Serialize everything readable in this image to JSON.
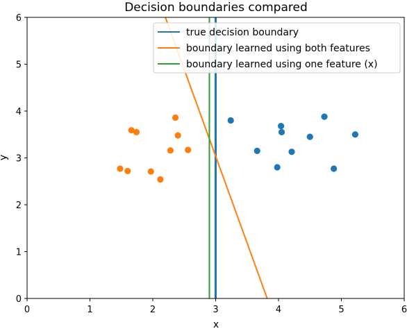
{
  "chart_data": {
    "type": "scatter",
    "title": "Decision boundaries compared",
    "xlabel": "x",
    "ylabel": "y",
    "xlim": [
      0,
      6
    ],
    "ylim": [
      0,
      6
    ],
    "xticks": [
      "0",
      "1",
      "2",
      "3",
      "4",
      "5",
      "6"
    ],
    "yticks": [
      "0",
      "1",
      "2",
      "3",
      "4",
      "5",
      "6"
    ],
    "grid": false,
    "legend_position": "top-right",
    "point_series": [
      {
        "color": "#ff7f0e",
        "points": [
          [
            1.48,
            2.77
          ],
          [
            1.6,
            2.72
          ],
          [
            1.66,
            3.59
          ],
          [
            1.74,
            3.55
          ],
          [
            1.97,
            2.71
          ],
          [
            2.12,
            2.54
          ],
          [
            2.28,
            3.16
          ],
          [
            2.36,
            3.86
          ],
          [
            2.4,
            3.48
          ],
          [
            2.56,
            3.17
          ]
        ]
      },
      {
        "color": "#1f77b4",
        "points": [
          [
            3.24,
            3.8
          ],
          [
            3.66,
            3.15
          ],
          [
            3.98,
            2.8
          ],
          [
            4.04,
            3.68
          ],
          [
            4.05,
            3.55
          ],
          [
            4.21,
            3.13
          ],
          [
            4.5,
            3.45
          ],
          [
            4.73,
            3.88
          ],
          [
            4.88,
            2.77
          ],
          [
            5.22,
            3.5
          ]
        ]
      }
    ],
    "line_series": [
      {
        "name": "true decision boundary",
        "color": "#1f77b4",
        "width": 3,
        "x": [
          3.0,
          3.0
        ],
        "y": [
          0,
          6
        ]
      },
      {
        "name": "boundary learned using both features",
        "color": "#ff7f0e",
        "width": 2,
        "x": [
          2.2,
          3.82
        ],
        "y": [
          6.0,
          0.0
        ]
      },
      {
        "name": "boundary learned using one feature (x)",
        "color": "#2ca02c",
        "width": 2,
        "x": [
          2.9,
          2.9
        ],
        "y": [
          0,
          6
        ]
      }
    ]
  }
}
